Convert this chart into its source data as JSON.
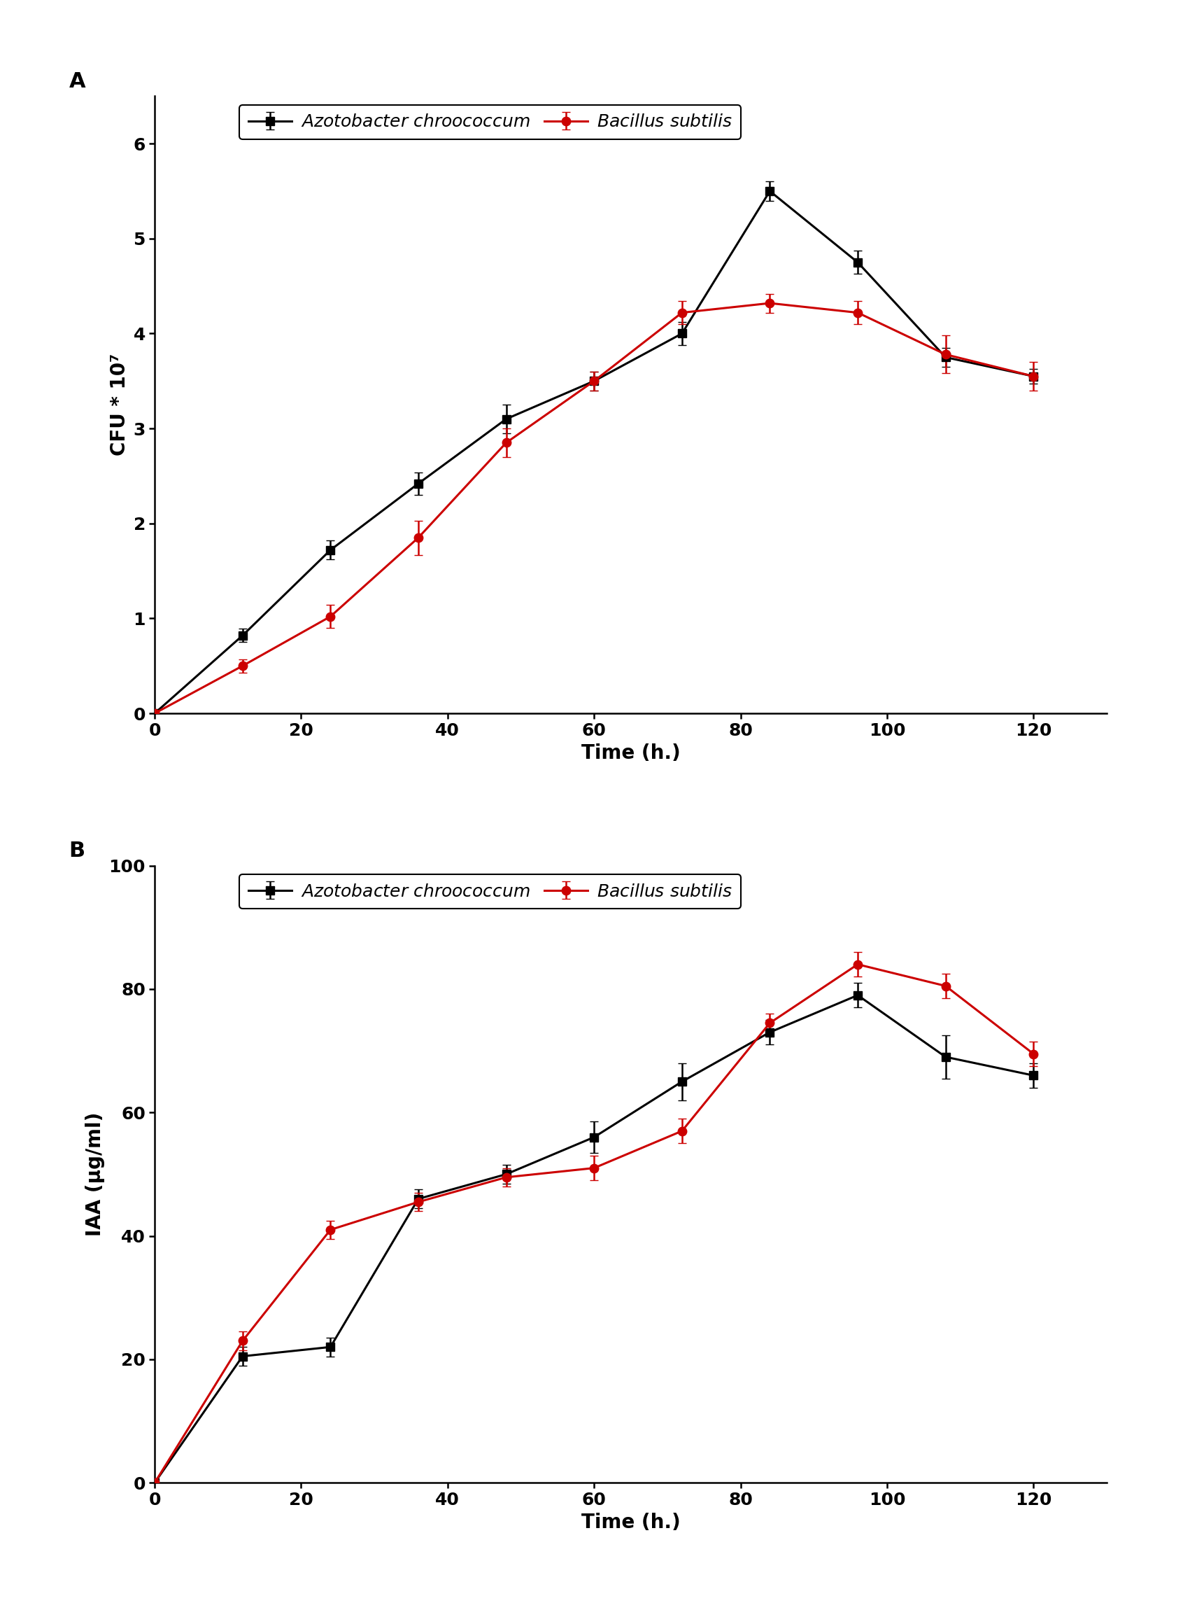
{
  "panel_A": {
    "title_label": "A",
    "x_azoto": [
      0,
      12,
      24,
      36,
      48,
      60,
      72,
      84,
      96,
      108,
      120
    ],
    "y_azoto": [
      0,
      0.82,
      1.72,
      2.42,
      3.1,
      3.5,
      4.0,
      5.5,
      4.75,
      3.75,
      3.55
    ],
    "ye_azoto": [
      0,
      0.07,
      0.1,
      0.12,
      0.15,
      0.1,
      0.12,
      0.1,
      0.12,
      0.1,
      0.08
    ],
    "x_bacil": [
      0,
      12,
      24,
      36,
      48,
      60,
      72,
      84,
      96,
      108,
      120
    ],
    "y_bacil": [
      0,
      0.5,
      1.02,
      1.85,
      2.85,
      3.5,
      4.22,
      4.32,
      4.22,
      3.78,
      3.55
    ],
    "ye_bacil": [
      0,
      0.07,
      0.12,
      0.18,
      0.15,
      0.1,
      0.12,
      0.1,
      0.12,
      0.2,
      0.15
    ],
    "xlabel": "Time (h.)",
    "ylabel": "CFU * 10⁷",
    "xlim": [
      0,
      130
    ],
    "ylim": [
      0,
      6.5
    ],
    "yticks": [
      0,
      1,
      2,
      3,
      4,
      5,
      6
    ],
    "xticks": [
      0,
      20,
      40,
      60,
      80,
      100,
      120
    ]
  },
  "panel_B": {
    "title_label": "B",
    "x_azoto": [
      0,
      12,
      24,
      36,
      48,
      60,
      72,
      84,
      96,
      108,
      120
    ],
    "y_azoto": [
      0,
      20.5,
      22.0,
      46.0,
      50.0,
      56.0,
      65.0,
      73.0,
      79.0,
      69.0,
      66.0
    ],
    "ye_azoto": [
      0,
      1.5,
      1.5,
      1.5,
      1.5,
      2.5,
      3.0,
      2.0,
      2.0,
      3.5,
      2.0
    ],
    "x_bacil": [
      0,
      12,
      24,
      36,
      48,
      60,
      72,
      84,
      96,
      108,
      120
    ],
    "y_bacil": [
      0,
      23.0,
      41.0,
      45.5,
      49.5,
      51.0,
      57.0,
      74.5,
      84.0,
      80.5,
      69.5
    ],
    "ye_bacil": [
      0,
      1.5,
      1.5,
      1.5,
      1.5,
      2.0,
      2.0,
      1.5,
      2.0,
      2.0,
      2.0
    ],
    "xlabel": "Time (h.)",
    "ylabel": "IAA (µg/ml)",
    "xlim": [
      0,
      130
    ],
    "ylim": [
      0,
      100
    ],
    "yticks": [
      0,
      20,
      40,
      60,
      80,
      100
    ],
    "xticks": [
      0,
      20,
      40,
      60,
      80,
      100,
      120
    ]
  },
  "legend_azoto": "Azotobacter chroococcum",
  "legend_bacil": "Bacillus subtilis",
  "color_azoto": "#000000",
  "color_bacil": "#cc0000",
  "marker_azoto": "s",
  "marker_bacil": "o",
  "linewidth": 2.2,
  "markersize": 9,
  "capsize": 4,
  "elinewidth": 1.8,
  "font_label_size": 20,
  "font_tick_size": 18,
  "font_legend_size": 18,
  "font_panel_label_size": 22,
  "background_color": "#ffffff"
}
